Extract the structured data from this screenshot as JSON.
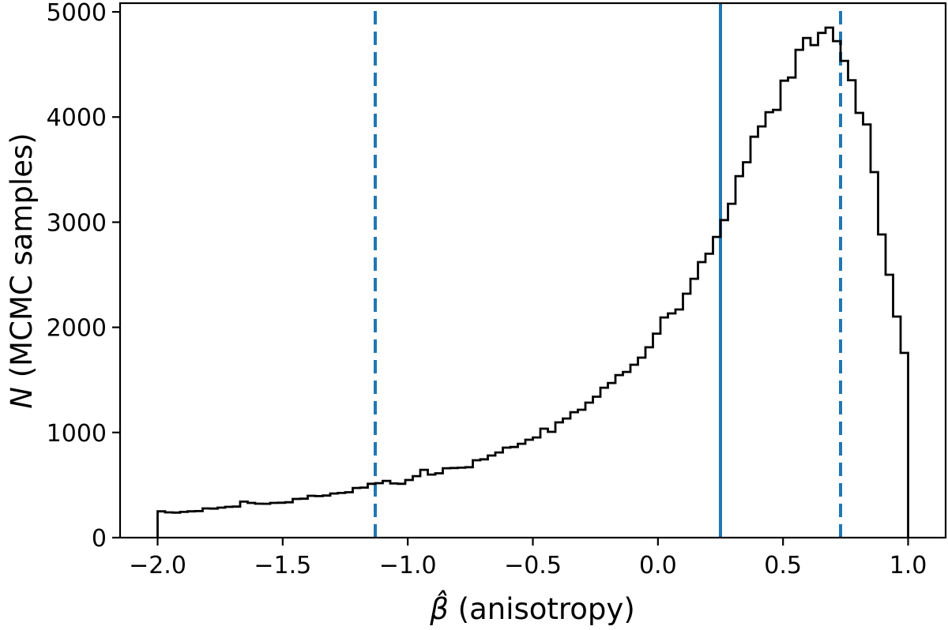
{
  "figure": {
    "background": "#ffffff",
    "frame_color": "#000000"
  },
  "chart_data": {
    "type": "histogram",
    "title": "",
    "xlabel_math": "β̂",
    "xlabel_rest": " (anisotropy)",
    "ylabel_math": "N",
    "ylabel_rest": " (MCMC samples)",
    "xlim": [
      -2.15,
      1.15
    ],
    "ylim": [
      0,
      5083
    ],
    "grid": false,
    "legend_position": "none",
    "x_ticks": {
      "values": [
        -2.0,
        -1.5,
        -1.0,
        -0.5,
        0.0,
        0.5,
        1.0
      ],
      "labels": [
        "−2.0",
        "−1.5",
        "−1.0",
        "−0.5",
        "0.0",
        "0.5",
        "1.0"
      ]
    },
    "y_ticks": {
      "values": [
        0,
        1000,
        2000,
        3000,
        4000,
        5000
      ],
      "labels": [
        "0",
        "1000",
        "2000",
        "3000",
        "4000",
        "5000"
      ]
    },
    "histogram": {
      "bin_start": -2.0,
      "bin_width": 0.03,
      "line_color": "#000000",
      "counts": [
        250,
        240,
        238,
        245,
        250,
        252,
        278,
        276,
        285,
        293,
        295,
        342,
        330,
        323,
        322,
        330,
        332,
        336,
        368,
        370,
        398,
        395,
        400,
        420,
        425,
        432,
        472,
        476,
        512,
        518,
        540,
        515,
        512,
        548,
        585,
        645,
        600,
        612,
        660,
        662,
        665,
        670,
        736,
        745,
        781,
        810,
        856,
        862,
        893,
        931,
        953,
        1036,
        1006,
        1096,
        1133,
        1193,
        1216,
        1284,
        1340,
        1426,
        1471,
        1546,
        1576,
        1644,
        1712,
        1810,
        1940,
        2094,
        2132,
        2170,
        2320,
        2462,
        2620,
        2700,
        2860,
        3020,
        3175,
        3438,
        3570,
        3813,
        3911,
        4046,
        4068,
        4346,
        4376,
        4639,
        4752,
        4684,
        4800,
        4850,
        4722,
        4534,
        4350,
        4039,
        3930,
        3476,
        2883,
        2500,
        2102,
        1757
      ]
    },
    "vlines": [
      {
        "x": 0.25,
        "style": "solid",
        "color": "#1f77b4"
      },
      {
        "x": -1.13,
        "style": "dashed",
        "color": "#1f77b4"
      },
      {
        "x": 0.73,
        "style": "dashed",
        "color": "#1f77b4"
      }
    ]
  }
}
